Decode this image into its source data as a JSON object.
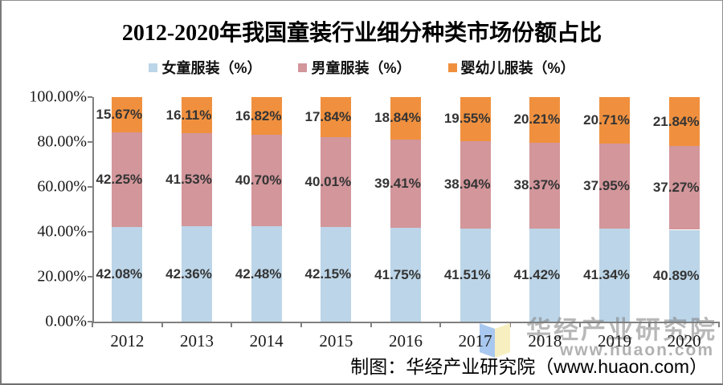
{
  "title": "2012-2020年我国童装行业细分种类市场份额占比",
  "legend": [
    {
      "label": "女童服装（%）",
      "color": "#bcd5e8"
    },
    {
      "label": "男童服装（%）",
      "color": "#d2969b"
    },
    {
      "label": "婴幼儿服装（%）",
      "color": "#f0903e"
    }
  ],
  "chart_data": {
    "type": "bar",
    "stacked": true,
    "title": "2012-2020年我国童装行业细分种类市场份额占比",
    "categories": [
      "2012",
      "2013",
      "2014",
      "2015",
      "2016",
      "2017",
      "2018",
      "2019",
      "2020"
    ],
    "series": [
      {
        "name": "女童服装（%）",
        "color": "#bcd5e8",
        "values": [
          42.08,
          42.36,
          42.48,
          42.15,
          41.75,
          41.51,
          41.42,
          41.34,
          40.89
        ]
      },
      {
        "name": "男童服装（%）",
        "color": "#d2969b",
        "values": [
          42.25,
          41.53,
          40.7,
          40.01,
          39.41,
          38.94,
          38.37,
          37.95,
          37.27
        ]
      },
      {
        "name": "婴幼儿服装（%）",
        "color": "#f0903e",
        "values": [
          15.67,
          16.11,
          16.82,
          17.84,
          18.84,
          19.55,
          20.21,
          20.71,
          21.84
        ]
      }
    ],
    "xlabel": "",
    "ylabel": "",
    "ylim": [
      0,
      100
    ],
    "yticks": [
      "100.00%",
      "80.00%",
      "60.00%",
      "40.00%",
      "20.00%",
      "0.00%"
    ],
    "grid": false,
    "legend_position": "top",
    "data_label_format": "0.00%"
  },
  "footer": {
    "attribution": "制图：华经产业研究院（www.huaon.com）"
  },
  "watermark": {
    "text": "华经产业研究院",
    "url": "www.huaon.com",
    "logo": "open-book-logo"
  }
}
